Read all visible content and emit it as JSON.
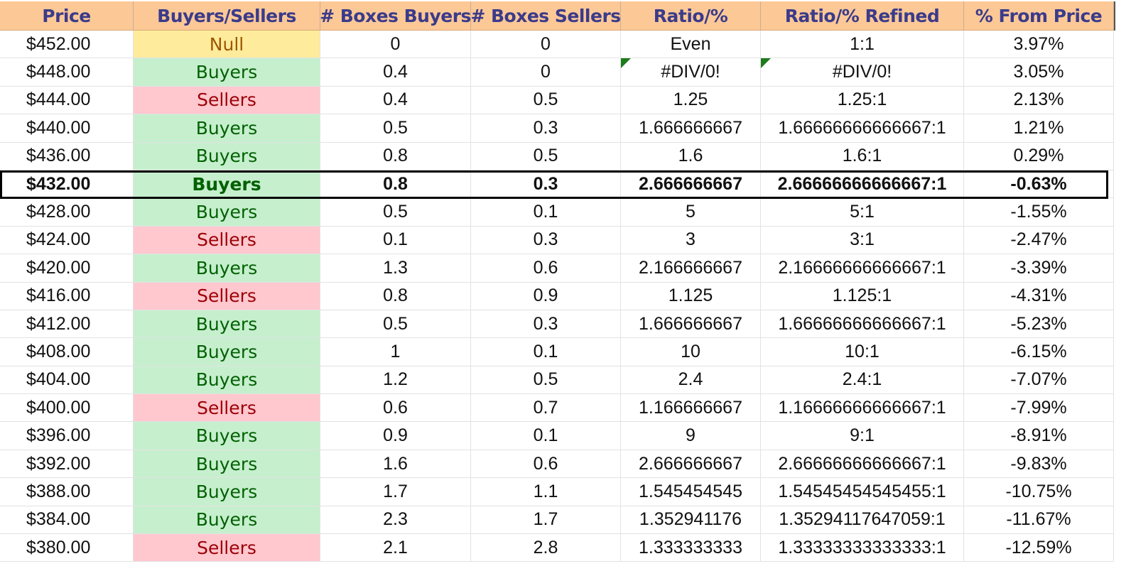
{
  "headers": [
    "Price",
    "Buyers/Sellers",
    "# Boxes Buyers",
    "# Boxes Sellers",
    "Ratio/%",
    "Ratio/% Refined",
    "% From Price"
  ],
  "colors": {
    "header_bg": "#fcc896",
    "header_text": "#3b3b8a",
    "buyers_bg": "#c6efce",
    "buyers_text": "#006100",
    "sellers_bg": "#ffc7ce",
    "sellers_text": "#9c0006",
    "null_bg": "#ffeb9c",
    "null_text": "#9c5700",
    "error_flag": "#1e7b1e"
  },
  "highlight_row_index": 5,
  "rows": [
    {
      "price": "$452.00",
      "side": "Null",
      "boxes_buyers": "0",
      "boxes_sellers": "0",
      "ratio": "Even",
      "ratio_refined": "1:1",
      "from_price": "3.97%",
      "flag": false
    },
    {
      "price": "$448.00",
      "side": "Buyers",
      "boxes_buyers": "0.4",
      "boxes_sellers": "0",
      "ratio": "#DIV/0!",
      "ratio_refined": "#DIV/0!",
      "from_price": "3.05%",
      "flag": true
    },
    {
      "price": "$444.00",
      "side": "Sellers",
      "boxes_buyers": "0.4",
      "boxes_sellers": "0.5",
      "ratio": "1.25",
      "ratio_refined": "1.25:1",
      "from_price": "2.13%",
      "flag": false
    },
    {
      "price": "$440.00",
      "side": "Buyers",
      "boxes_buyers": "0.5",
      "boxes_sellers": "0.3",
      "ratio": "1.666666667",
      "ratio_refined": "1.66666666666667:1",
      "from_price": "1.21%",
      "flag": false
    },
    {
      "price": "$436.00",
      "side": "Buyers",
      "boxes_buyers": "0.8",
      "boxes_sellers": "0.5",
      "ratio": "1.6",
      "ratio_refined": "1.6:1",
      "from_price": "0.29%",
      "flag": false
    },
    {
      "price": "$432.00",
      "side": "Buyers",
      "boxes_buyers": "0.8",
      "boxes_sellers": "0.3",
      "ratio": "2.666666667",
      "ratio_refined": "2.66666666666667:1",
      "from_price": "-0.63%",
      "flag": false
    },
    {
      "price": "$428.00",
      "side": "Buyers",
      "boxes_buyers": "0.5",
      "boxes_sellers": "0.1",
      "ratio": "5",
      "ratio_refined": "5:1",
      "from_price": "-1.55%",
      "flag": false
    },
    {
      "price": "$424.00",
      "side": "Sellers",
      "boxes_buyers": "0.1",
      "boxes_sellers": "0.3",
      "ratio": "3",
      "ratio_refined": "3:1",
      "from_price": "-2.47%",
      "flag": false
    },
    {
      "price": "$420.00",
      "side": "Buyers",
      "boxes_buyers": "1.3",
      "boxes_sellers": "0.6",
      "ratio": "2.166666667",
      "ratio_refined": "2.16666666666667:1",
      "from_price": "-3.39%",
      "flag": false
    },
    {
      "price": "$416.00",
      "side": "Sellers",
      "boxes_buyers": "0.8",
      "boxes_sellers": "0.9",
      "ratio": "1.125",
      "ratio_refined": "1.125:1",
      "from_price": "-4.31%",
      "flag": false
    },
    {
      "price": "$412.00",
      "side": "Buyers",
      "boxes_buyers": "0.5",
      "boxes_sellers": "0.3",
      "ratio": "1.666666667",
      "ratio_refined": "1.66666666666667:1",
      "from_price": "-5.23%",
      "flag": false
    },
    {
      "price": "$408.00",
      "side": "Buyers",
      "boxes_buyers": "1",
      "boxes_sellers": "0.1",
      "ratio": "10",
      "ratio_refined": "10:1",
      "from_price": "-6.15%",
      "flag": false
    },
    {
      "price": "$404.00",
      "side": "Buyers",
      "boxes_buyers": "1.2",
      "boxes_sellers": "0.5",
      "ratio": "2.4",
      "ratio_refined": "2.4:1",
      "from_price": "-7.07%",
      "flag": false
    },
    {
      "price": "$400.00",
      "side": "Sellers",
      "boxes_buyers": "0.6",
      "boxes_sellers": "0.7",
      "ratio": "1.166666667",
      "ratio_refined": "1.16666666666667:1",
      "from_price": "-7.99%",
      "flag": false
    },
    {
      "price": "$396.00",
      "side": "Buyers",
      "boxes_buyers": "0.9",
      "boxes_sellers": "0.1",
      "ratio": "9",
      "ratio_refined": "9:1",
      "from_price": "-8.91%",
      "flag": false
    },
    {
      "price": "$392.00",
      "side": "Buyers",
      "boxes_buyers": "1.6",
      "boxes_sellers": "0.6",
      "ratio": "2.666666667",
      "ratio_refined": "2.66666666666667:1",
      "from_price": "-9.83%",
      "flag": false
    },
    {
      "price": "$388.00",
      "side": "Buyers",
      "boxes_buyers": "1.7",
      "boxes_sellers": "1.1",
      "ratio": "1.545454545",
      "ratio_refined": "1.54545454545455:1",
      "from_price": "-10.75%",
      "flag": false
    },
    {
      "price": "$384.00",
      "side": "Buyers",
      "boxes_buyers": "2.3",
      "boxes_sellers": "1.7",
      "ratio": "1.352941176",
      "ratio_refined": "1.35294117647059:1",
      "from_price": "-11.67%",
      "flag": false
    },
    {
      "price": "$380.00",
      "side": "Sellers",
      "boxes_buyers": "2.1",
      "boxes_sellers": "2.8",
      "ratio": "1.333333333",
      "ratio_refined": "1.33333333333333:1",
      "from_price": "-12.59%",
      "flag": false
    }
  ]
}
